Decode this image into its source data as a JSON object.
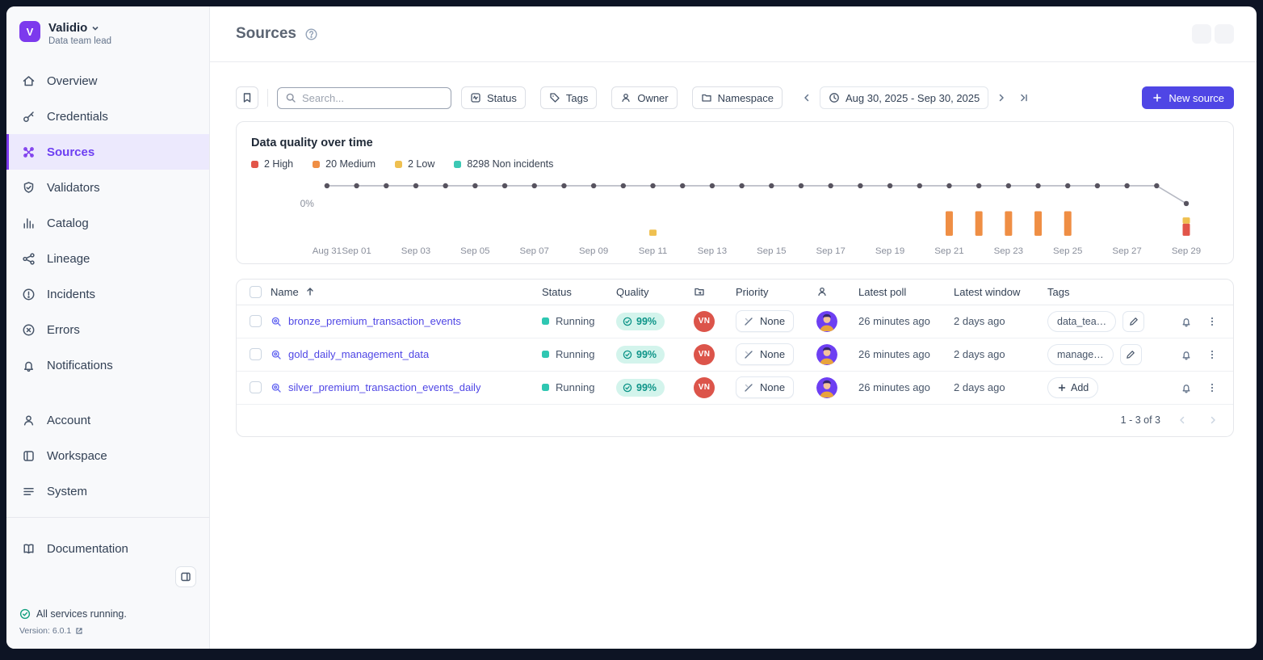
{
  "org": {
    "name": "Validio",
    "role": "Data team lead",
    "logo_glyph": "V"
  },
  "sidebar": {
    "main_items": [
      {
        "label": "Overview"
      },
      {
        "label": "Credentials"
      },
      {
        "label": "Sources",
        "active": true
      },
      {
        "label": "Validators"
      },
      {
        "label": "Catalog"
      },
      {
        "label": "Lineage"
      },
      {
        "label": "Incidents"
      },
      {
        "label": "Errors"
      },
      {
        "label": "Notifications"
      }
    ],
    "secondary_items": [
      {
        "label": "Account"
      },
      {
        "label": "Workspace"
      },
      {
        "label": "System"
      }
    ],
    "tertiary_items": [
      {
        "label": "Documentation"
      }
    ],
    "status_message": "All services running.",
    "version_label": "Version: 6.0.1"
  },
  "header": {
    "title": "Sources"
  },
  "toolbar": {
    "search_placeholder": "Search...",
    "filters": [
      {
        "label": "Status"
      },
      {
        "label": "Tags"
      },
      {
        "label": "Owner"
      },
      {
        "label": "Namespace"
      }
    ],
    "date_range": "Aug 30, 2025 - Sep 30, 2025",
    "new_source_label": "New source"
  },
  "chart_data": {
    "type": "line+bar",
    "title": "Data quality over time",
    "ylabel": "0%",
    "legend": [
      {
        "label": "2 High",
        "color": "#e25549"
      },
      {
        "label": "20 Medium",
        "color": "#ef8e44"
      },
      {
        "label": "2 Low",
        "color": "#efc050"
      },
      {
        "label": "8298 Non incidents",
        "color": "#3cc8b4"
      }
    ],
    "colors": {
      "high": "#e25549",
      "medium": "#ef8e44",
      "low": "#efc050",
      "line": "#57535f"
    },
    "x": [
      "Aug 31",
      "Sep 01",
      "Sep 02",
      "Sep 03",
      "Sep 04",
      "Sep 05",
      "Sep 06",
      "Sep 07",
      "Sep 08",
      "Sep 09",
      "Sep 10",
      "Sep 11",
      "Sep 12",
      "Sep 13",
      "Sep 14",
      "Sep 15",
      "Sep 16",
      "Sep 17",
      "Sep 18",
      "Sep 19",
      "Sep 20",
      "Sep 21",
      "Sep 22",
      "Sep 23",
      "Sep 24",
      "Sep 25",
      "Sep 26",
      "Sep 27",
      "Sep 28",
      "Sep 29"
    ],
    "tick_indices": [
      0,
      1,
      3,
      5,
      7,
      9,
      11,
      13,
      15,
      17,
      19,
      21,
      23,
      25,
      27,
      29
    ],
    "series_line": {
      "name": "Data quality %",
      "values": [
        100,
        100,
        100,
        100,
        100,
        100,
        100,
        100,
        100,
        100,
        100,
        100,
        100,
        100,
        100,
        100,
        100,
        100,
        100,
        100,
        100,
        100,
        100,
        100,
        100,
        100,
        100,
        100,
        100,
        0
      ]
    },
    "series_bars": {
      "high": [
        0,
        0,
        0,
        0,
        0,
        0,
        0,
        0,
        0,
        0,
        0,
        0,
        0,
        0,
        0,
        0,
        0,
        0,
        0,
        0,
        0,
        0,
        0,
        0,
        0,
        0,
        0,
        0,
        0,
        2
      ],
      "medium": [
        0,
        0,
        0,
        0,
        0,
        0,
        0,
        0,
        0,
        0,
        0,
        0,
        0,
        0,
        0,
        0,
        0,
        0,
        0,
        0,
        0,
        4,
        4,
        4,
        4,
        4,
        0,
        0,
        0,
        0
      ],
      "low": [
        0,
        0,
        0,
        0,
        0,
        0,
        0,
        0,
        0,
        0,
        0,
        1,
        0,
        0,
        0,
        0,
        0,
        0,
        0,
        0,
        0,
        0,
        0,
        0,
        0,
        0,
        0,
        0,
        0,
        1
      ]
    }
  },
  "table": {
    "headers": {
      "name": "Name",
      "status": "Status",
      "quality": "Quality",
      "priority": "Priority",
      "latest_poll": "Latest poll",
      "latest_window": "Latest window",
      "tags": "Tags"
    },
    "rows": [
      {
        "name": "bronze_premium_transaction_events",
        "status": "Running",
        "quality": "99%",
        "namespace": "VN",
        "priority": "None",
        "latest_poll": "26 minutes ago",
        "latest_window": "2 days ago",
        "tag": "data_tea…"
      },
      {
        "name": "gold_daily_management_data",
        "status": "Running",
        "quality": "99%",
        "namespace": "VN",
        "priority": "None",
        "latest_poll": "26 minutes ago",
        "latest_window": "2 days ago",
        "tag": "manage…"
      },
      {
        "name": "silver_premium_transaction_events_daily",
        "status": "Running",
        "quality": "99%",
        "namespace": "VN",
        "priority": "None",
        "latest_poll": "26 minutes ago",
        "latest_window": "2 days ago",
        "tag_action": "Add"
      }
    ],
    "pagination": "1 - 3 of 3"
  }
}
